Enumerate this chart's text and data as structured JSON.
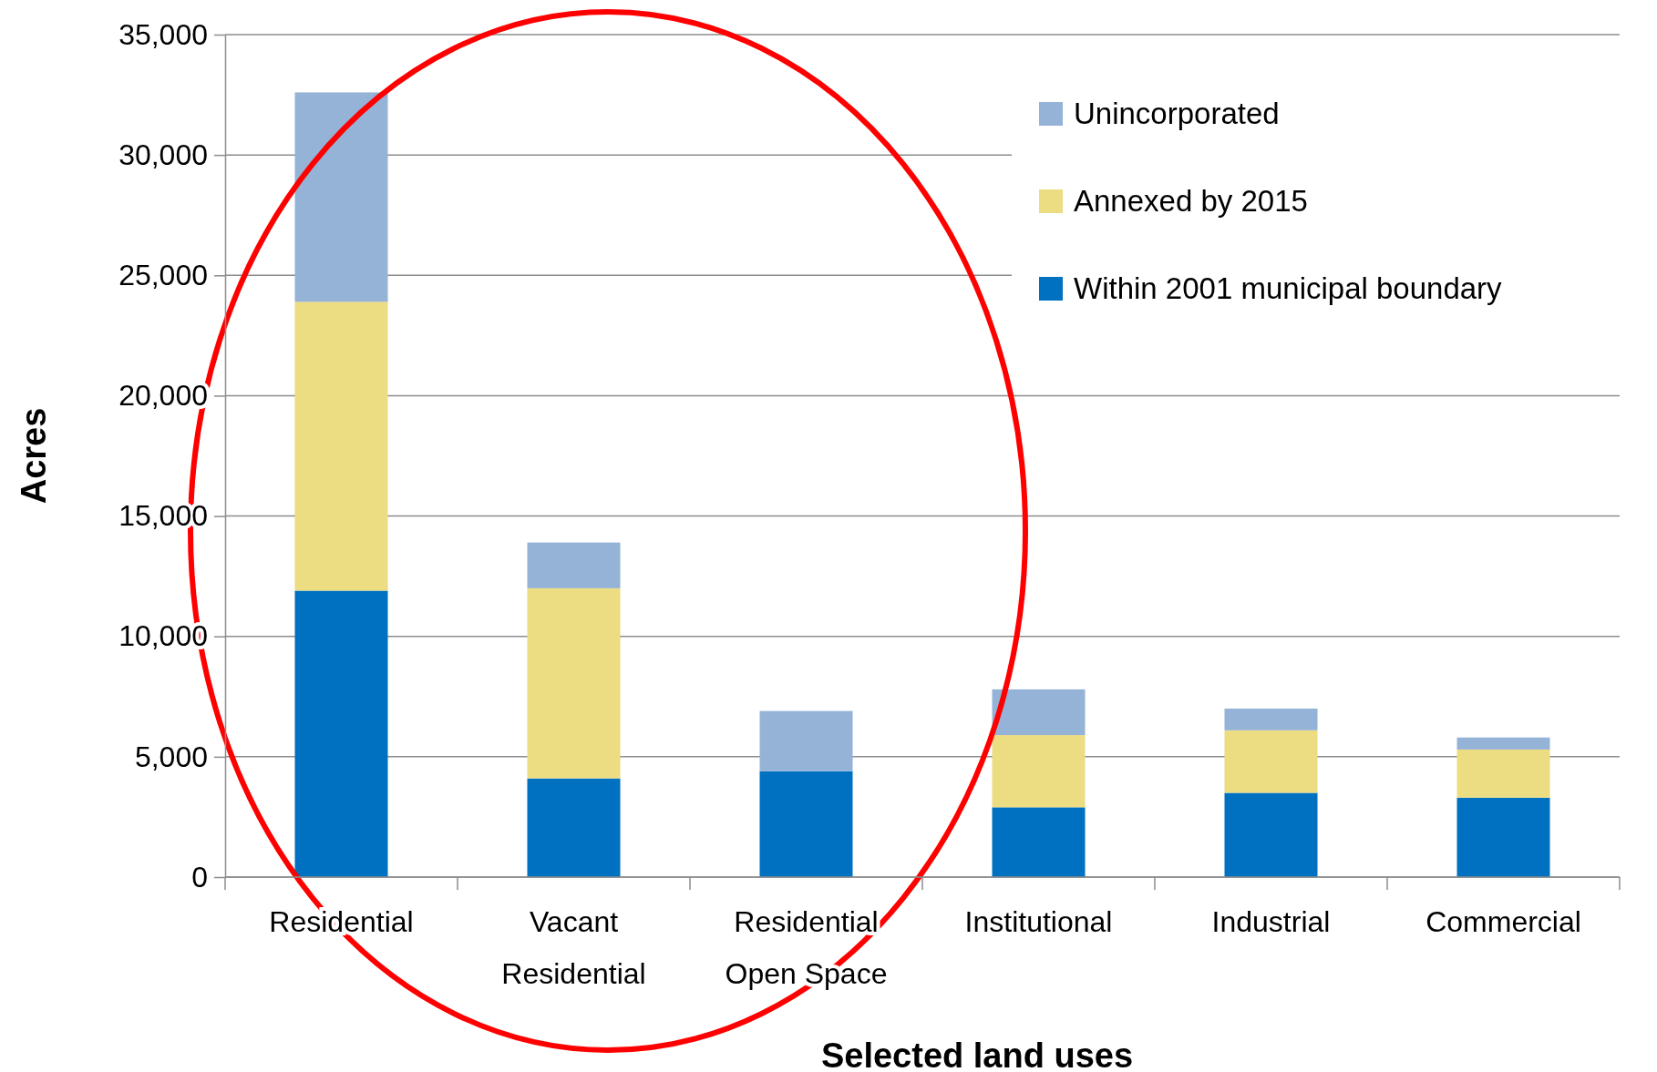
{
  "chart_data": {
    "type": "bar",
    "stacked": true,
    "xlabel": "Selected land uses",
    "ylabel": "Acres",
    "categories": [
      "Residential",
      "Vacant Residential",
      "Residential Open Space",
      "Institutional",
      "Industrial",
      "Commercial"
    ],
    "series": [
      {
        "name": "Within 2001 municipal boundary",
        "color": "#0070c0",
        "values": [
          11900,
          4100,
          4400,
          2900,
          3500,
          3300
        ]
      },
      {
        "name": "Annexed by 2015",
        "color": "#ecdc82",
        "values": [
          12000,
          7900,
          0,
          3000,
          2600,
          2000
        ]
      },
      {
        "name": "Unincorporated",
        "color": "#95b3d7",
        "values": [
          8700,
          1900,
          2500,
          1900,
          900,
          500
        ]
      }
    ],
    "ylim": [
      0,
      35000
    ],
    "yticks": [
      {
        "value": 0,
        "label": "0"
      },
      {
        "value": 5000,
        "label": "5,000"
      },
      {
        "value": 10000,
        "label": "10,000"
      },
      {
        "value": 15000,
        "label": "15,000"
      },
      {
        "value": 20000,
        "label": "20,000"
      },
      {
        "value": 25000,
        "label": "25,000"
      },
      {
        "value": 30000,
        "label": "30,000"
      },
      {
        "value": 35000,
        "label": "35,000"
      }
    ],
    "grid": "y",
    "legend": "top right"
  }
}
